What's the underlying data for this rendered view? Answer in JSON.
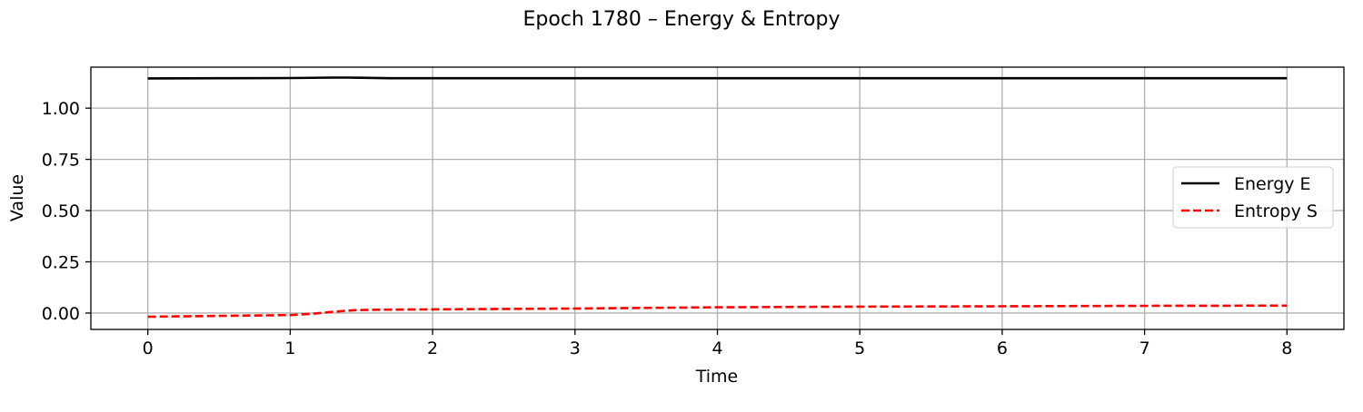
{
  "chart_data": {
    "type": "line",
    "title": "Epoch 1780 – Energy & Entropy",
    "xlabel": "Time",
    "ylabel": "Value",
    "xlim": [
      -0.4,
      8.4
    ],
    "ylim": [
      -0.08,
      1.2
    ],
    "xticks": [
      0,
      1,
      2,
      3,
      4,
      5,
      6,
      7,
      8
    ],
    "xtick_labels": [
      "0",
      "1",
      "2",
      "3",
      "4",
      "5",
      "6",
      "7",
      "8"
    ],
    "yticks": [
      0.0,
      0.25,
      0.5,
      0.75,
      1.0
    ],
    "ytick_labels": [
      "0.00",
      "0.25",
      "0.50",
      "0.75",
      "1.00"
    ],
    "grid": true,
    "legend_position": "center-right",
    "series": [
      {
        "name": "Energy E",
        "color": "#000000",
        "style": "solid",
        "x": [
          0,
          0.5,
          1,
          1.3,
          1.4,
          1.5,
          1.7,
          2,
          3,
          4,
          5,
          6,
          7,
          8
        ],
        "y": [
          1.145,
          1.146,
          1.147,
          1.149,
          1.149,
          1.148,
          1.146,
          1.146,
          1.146,
          1.146,
          1.146,
          1.146,
          1.146,
          1.146
        ]
      },
      {
        "name": "Entropy S",
        "color": "#ff0000",
        "style": "dashed",
        "x": [
          0,
          0.5,
          1,
          1.15,
          1.3,
          1.45,
          1.6,
          2,
          3,
          4,
          5,
          6,
          7,
          8
        ],
        "y": [
          -0.018,
          -0.014,
          -0.01,
          -0.004,
          0.006,
          0.014,
          0.016,
          0.018,
          0.022,
          0.028,
          0.031,
          0.033,
          0.035,
          0.036
        ]
      }
    ]
  }
}
